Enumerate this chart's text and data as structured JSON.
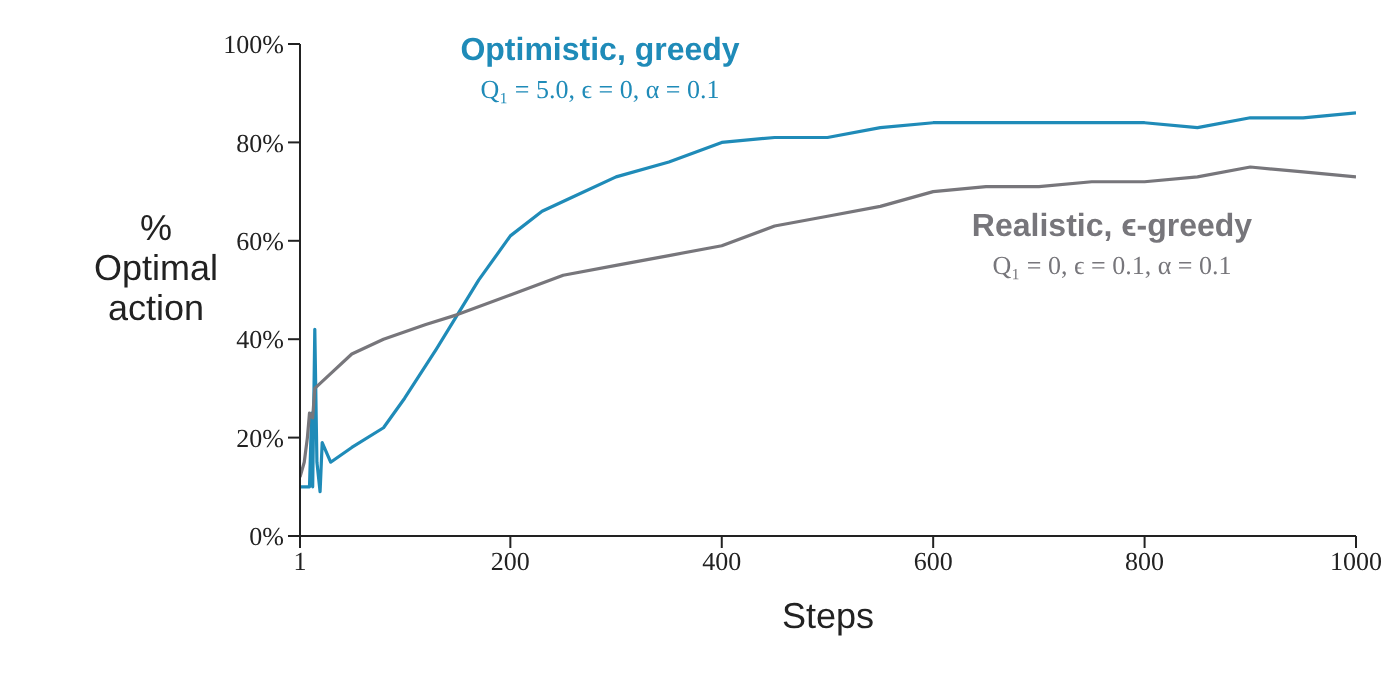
{
  "chart_data": {
    "type": "line",
    "xlabel": "Steps",
    "ylabel": "% Optimal action",
    "xlim": [
      1,
      1000
    ],
    "xticks": [
      1,
      200,
      400,
      600,
      800,
      1000
    ],
    "ylim": [
      0,
      100
    ],
    "yticks": [
      {
        "value": 0,
        "label": "0%"
      },
      {
        "value": 20,
        "label": "20%"
      },
      {
        "value": 40,
        "label": "40%"
      },
      {
        "value": 60,
        "label": "60%"
      },
      {
        "value": 80,
        "label": "80%"
      },
      {
        "value": 100,
        "label": "100%"
      }
    ],
    "marker": "none",
    "line_style": "solid",
    "series": [
      {
        "name": "Optimistic, greedy",
        "color": "#1f8bb8",
        "x": [
          1,
          5,
          10,
          12,
          13,
          15,
          17,
          20,
          22,
          30,
          50,
          80,
          100,
          130,
          150,
          170,
          200,
          230,
          260,
          300,
          350,
          400,
          450,
          500,
          550,
          600,
          700,
          800,
          850,
          900,
          950,
          1000
        ],
        "values": [
          10,
          10,
          10,
          25,
          10,
          42,
          15,
          9,
          19,
          15,
          18,
          22,
          28,
          38,
          45,
          52,
          61,
          66,
          69,
          73,
          76,
          80,
          81,
          81,
          83,
          84,
          84,
          84,
          83,
          85,
          85,
          86
        ]
      },
      {
        "name": "Realistic, ϵ-greedy",
        "color": "#77767b",
        "x": [
          1,
          5,
          8,
          10,
          13,
          15,
          30,
          50,
          80,
          120,
          150,
          200,
          250,
          300,
          350,
          400,
          450,
          500,
          550,
          600,
          650,
          700,
          750,
          800,
          850,
          900,
          950,
          1000
        ],
        "values": [
          12,
          15,
          20,
          25,
          24,
          30,
          33,
          37,
          40,
          43,
          45,
          49,
          53,
          55,
          57,
          59,
          63,
          65,
          67,
          70,
          71,
          71,
          72,
          72,
          73,
          75,
          74,
          73
        ]
      }
    ],
    "annotations": [
      "Q₁ = 5.0, ϵ = 0, α = 0.1",
      "Q₁ = 0, ϵ = 0.1, α = 0.1"
    ]
  }
}
